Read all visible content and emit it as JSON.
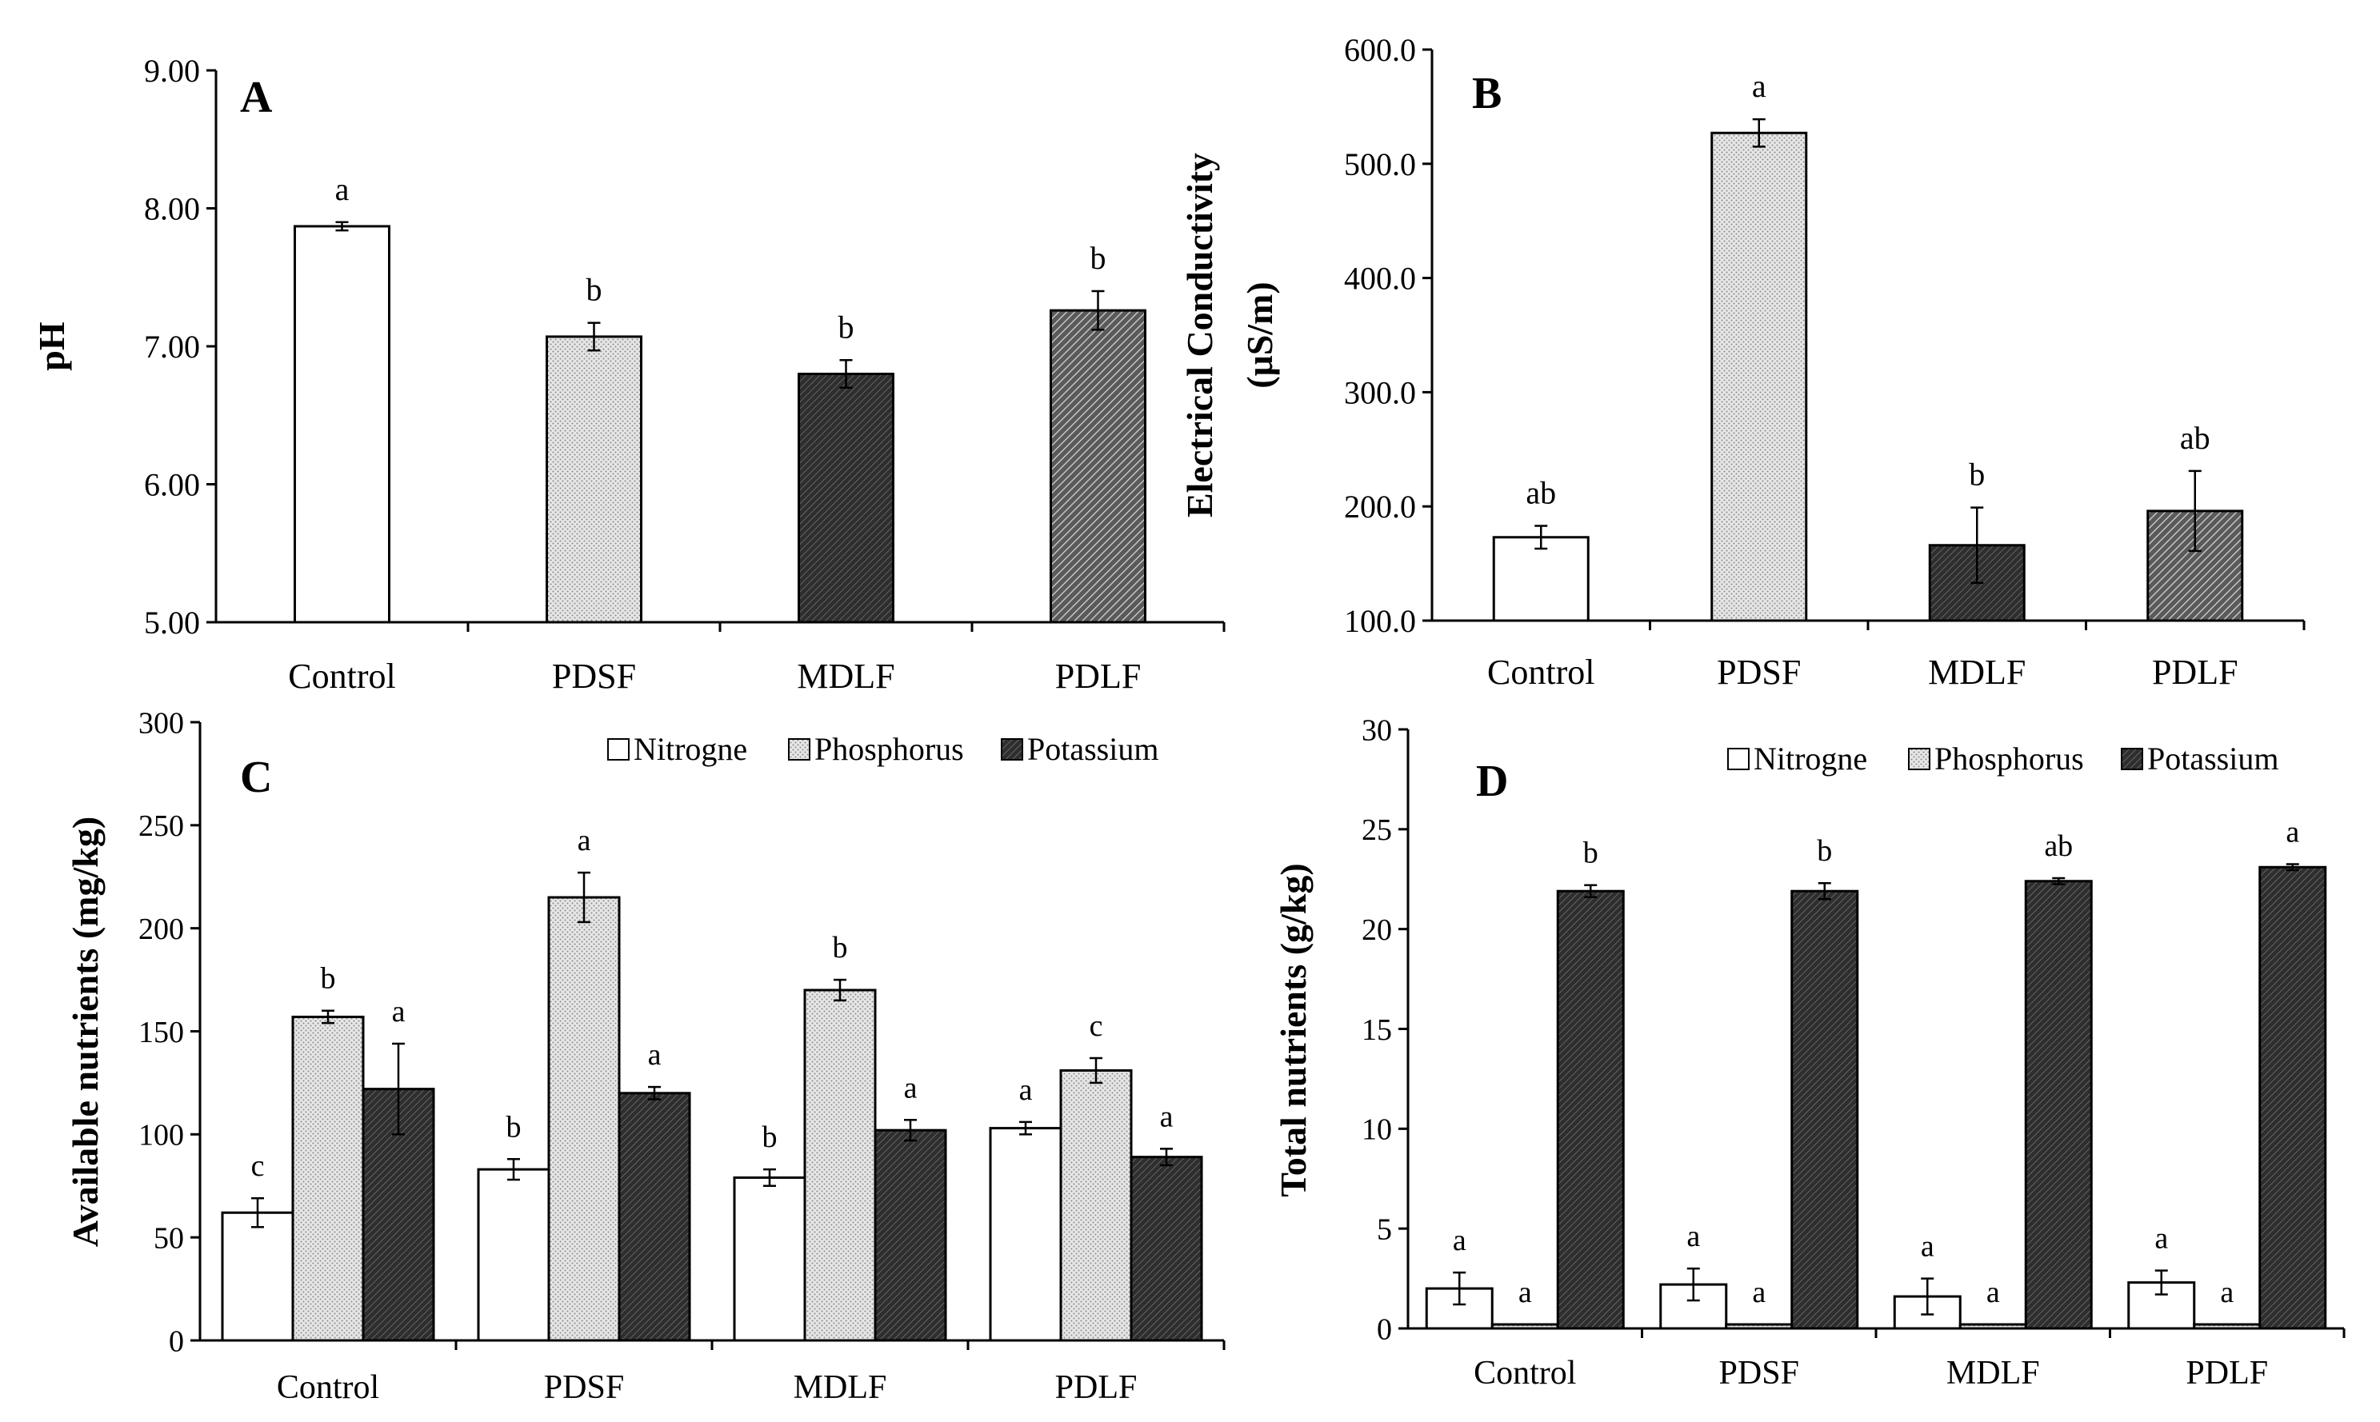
{
  "chart_data": [
    {
      "id": "A",
      "type": "bar",
      "panel_label": "A",
      "title": "",
      "categories": [
        "Control",
        "PDSF",
        "MDLF",
        "PDLF"
      ],
      "series": [
        {
          "name": "pH",
          "values": [
            7.87,
            7.07,
            6.8,
            7.26
          ],
          "errors": [
            0.03,
            0.1,
            0.1,
            0.14
          ],
          "letters": [
            "a",
            "b",
            "b",
            "b"
          ]
        }
      ],
      "xlabel": "",
      "ylabel": "pH",
      "ylim": [
        5.0,
        9.0
      ],
      "yticks": [
        5.0,
        6.0,
        7.0,
        8.0,
        9.0
      ],
      "ytick_labels": [
        "5.00",
        "6.00",
        "7.00",
        "8.00",
        "9.00"
      ],
      "legend": []
    },
    {
      "id": "B",
      "type": "bar",
      "panel_label": "B",
      "title": "",
      "categories": [
        "Control",
        "PDSF",
        "MDLF",
        "PDLF"
      ],
      "series": [
        {
          "name": "Electrical Conductivity",
          "values": [
            173,
            527,
            166,
            196
          ],
          "errors": [
            10,
            12,
            33,
            35
          ],
          "letters": [
            "ab",
            "a",
            "b",
            "ab"
          ]
        }
      ],
      "xlabel": "",
      "ylabel": "Electrical Conductivity",
      "ylabel2": "(μS/m)",
      "ylim": [
        100,
        600
      ],
      "yticks": [
        100,
        200,
        300,
        400,
        500,
        600
      ],
      "ytick_labels": [
        "100.0",
        "200.0",
        "300.0",
        "400.0",
        "500.0",
        "600.0"
      ],
      "legend": []
    },
    {
      "id": "C",
      "type": "bar",
      "panel_label": "C",
      "title": "",
      "categories": [
        "Control",
        "PDSF",
        "MDLF",
        "PDLF"
      ],
      "series": [
        {
          "name": "Nitrogne",
          "values": [
            62,
            83,
            79,
            103
          ],
          "errors": [
            7,
            5,
            4,
            3
          ],
          "letters": [
            "c",
            "b",
            "b",
            "a"
          ]
        },
        {
          "name": "Phosphorus",
          "values": [
            157,
            215,
            170,
            131
          ],
          "errors": [
            3,
            12,
            5,
            6
          ],
          "letters": [
            "b",
            "a",
            "b",
            "c"
          ]
        },
        {
          "name": "Potassium",
          "values": [
            122,
            120,
            102,
            89
          ],
          "errors": [
            22,
            3,
            5,
            4
          ],
          "letters": [
            "a",
            "a",
            "a",
            "a"
          ]
        }
      ],
      "xlabel": "",
      "ylabel": "Available nutrients (mg/kg)",
      "ylim": [
        0,
        300
      ],
      "yticks": [
        0,
        50,
        100,
        150,
        200,
        250,
        300
      ],
      "ytick_labels": [
        "0",
        "50",
        "100",
        "150",
        "200",
        "250",
        "300"
      ],
      "legend": [
        "Nitrogne",
        "Phosphorus",
        "Potassium"
      ]
    },
    {
      "id": "D",
      "type": "bar",
      "panel_label": "D",
      "title": "",
      "categories": [
        "Control",
        "PDSF",
        "MDLF",
        "PDLF"
      ],
      "series": [
        {
          "name": "Nitrogne",
          "values": [
            2.0,
            2.2,
            1.6,
            2.3
          ],
          "errors": [
            0.8,
            0.8,
            0.9,
            0.6
          ],
          "letters": [
            "a",
            "a",
            "a",
            "a"
          ]
        },
        {
          "name": "Phosphorus",
          "values": [
            0.2,
            0.2,
            0.2,
            0.2
          ],
          "errors": [
            0,
            0,
            0,
            0
          ],
          "letters": [
            "a",
            "a",
            "a",
            "a"
          ]
        },
        {
          "name": "Potassium",
          "values": [
            21.9,
            21.9,
            22.4,
            23.1
          ],
          "errors": [
            0.3,
            0.4,
            0.15,
            0.15
          ],
          "letters": [
            "b",
            "b",
            "ab",
            "a"
          ]
        }
      ],
      "xlabel": "",
      "ylabel": "Total nutrients (g/kg)",
      "ylim": [
        0,
        30
      ],
      "yticks": [
        0,
        5,
        10,
        15,
        20,
        25,
        30
      ],
      "ytick_labels": [
        "0",
        "5",
        "10",
        "15",
        "20",
        "25",
        "30"
      ],
      "legend": [
        "Nitrogne",
        "Phosphorus",
        "Potassium"
      ]
    }
  ]
}
